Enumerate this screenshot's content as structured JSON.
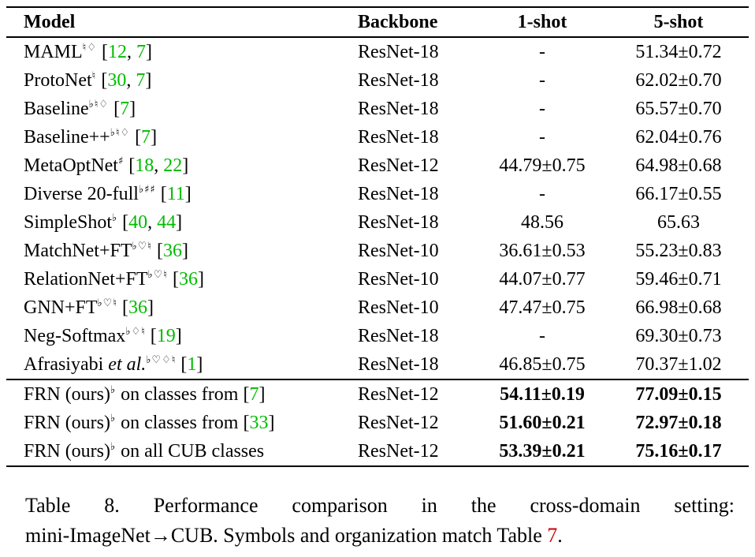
{
  "colors": {
    "citation_green": "#00BB00",
    "ref_red": "#CC0000"
  },
  "table": {
    "headers": [
      "Model",
      "Backbone",
      "1-shot",
      "5-shot"
    ],
    "rows": [
      {
        "name": "MAML",
        "sup": "♮♢",
        "cites": [
          "12",
          "7"
        ],
        "backbone": "ResNet-18",
        "one_shot": "-",
        "five_shot": "51.34±0.72",
        "bold_results": false
      },
      {
        "name": "ProtoNet",
        "sup": "♮",
        "cites": [
          "30",
          "7"
        ],
        "backbone": "ResNet-18",
        "one_shot": "-",
        "five_shot": "62.02±0.70",
        "bold_results": false
      },
      {
        "name": "Baseline",
        "sup": "♭♮♢",
        "cites": [
          "7"
        ],
        "backbone": "ResNet-18",
        "one_shot": "-",
        "five_shot": "65.57±0.70",
        "bold_results": false
      },
      {
        "name": "Baseline++",
        "sup": "♭♮♢",
        "cites": [
          "7"
        ],
        "backbone": "ResNet-18",
        "one_shot": "-",
        "five_shot": "62.04±0.76",
        "bold_results": false
      },
      {
        "name": "MetaOptNet",
        "sup": "♯",
        "cites": [
          "18",
          "22"
        ],
        "backbone": "ResNet-12",
        "one_shot": "44.79±0.75",
        "five_shot": "64.98±0.68",
        "bold_results": false
      },
      {
        "name": "Diverse 20-full",
        "sup": "♭♯♯",
        "cites": [
          "11"
        ],
        "backbone": "ResNet-18",
        "one_shot": "-",
        "five_shot": "66.17±0.55",
        "bold_results": false
      },
      {
        "name": "SimpleShot",
        "sup": "♭",
        "cites": [
          "40",
          "44"
        ],
        "backbone": "ResNet-18",
        "one_shot": "48.56",
        "five_shot": "65.63",
        "bold_results": false
      },
      {
        "name": "MatchNet+FT",
        "sup": "♭♡♮",
        "cites": [
          "36"
        ],
        "backbone": "ResNet-10",
        "one_shot": "36.61±0.53",
        "five_shot": "55.23±0.83",
        "bold_results": false
      },
      {
        "name": "RelationNet+FT",
        "sup": "♭♡♮",
        "cites": [
          "36"
        ],
        "backbone": "ResNet-10",
        "one_shot": "44.07±0.77",
        "five_shot": "59.46±0.71",
        "bold_results": false
      },
      {
        "name": "GNN+FT",
        "sup": "♭♡♮",
        "cites": [
          "36"
        ],
        "backbone": "ResNet-10",
        "one_shot": "47.47±0.75",
        "five_shot": "66.98±0.68",
        "bold_results": false
      },
      {
        "name": "Neg-Softmax",
        "sup": "♭♢♮",
        "cites": [
          "19"
        ],
        "backbone": "ResNet-18",
        "one_shot": "-",
        "five_shot": "69.30±0.73",
        "bold_results": false
      },
      {
        "name": "Afrasiyabi ",
        "name_italic": "et al.",
        "sup": "♭♡♢♮",
        "cites": [
          "1"
        ],
        "backbone": "ResNet-18",
        "one_shot": "46.85±0.75",
        "five_shot": "70.37±1.02",
        "bold_results": false
      },
      {
        "name": "FRN (ours)",
        "sup": "♭",
        "after": " on classes from",
        "cites": [
          "7"
        ],
        "backbone": "ResNet-12",
        "one_shot": "54.11±0.19",
        "five_shot": "77.09±0.15",
        "bold_results": true,
        "rule_above": true
      },
      {
        "name": "FRN (ours)",
        "sup": "♭",
        "after": " on classes from",
        "cites": [
          "33"
        ],
        "backbone": "ResNet-12",
        "one_shot": "51.60±0.21",
        "five_shot": "72.97±0.18",
        "bold_results": true
      },
      {
        "name": "FRN (ours)",
        "sup": "♭",
        "after": " on all CUB classes",
        "cites": [],
        "backbone": "ResNet-12",
        "one_shot": "53.39±0.21",
        "five_shot": "75.16±0.17",
        "bold_results": true
      }
    ]
  },
  "caption": {
    "line1": "Table 8. Performance comparison in the cross-domain setting:",
    "line2_pre": "mini-ImageNet→CUB. Symbols and organization match Table ",
    "line2_link": "7",
    "line2_post": "."
  }
}
